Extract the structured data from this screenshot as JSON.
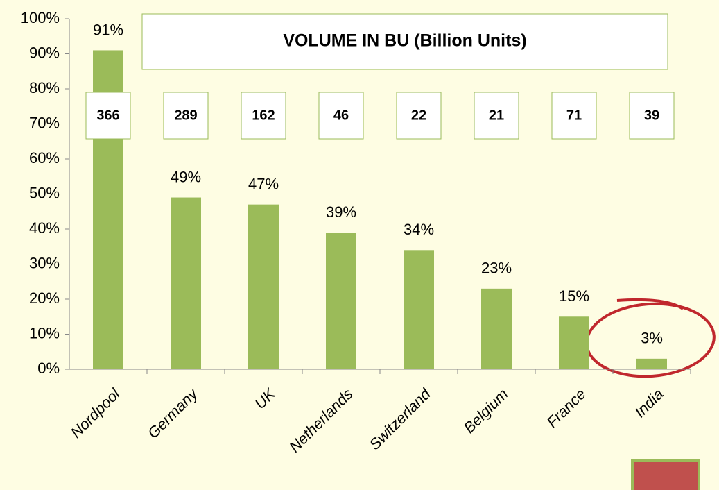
{
  "chart_data": {
    "type": "bar",
    "title": "VOLUME IN BU (Billion Units)",
    "categories": [
      "Nordpool",
      "Germany",
      "UK",
      "Netherlands",
      "Switzerland",
      "Belgium",
      "France",
      "India"
    ],
    "values": [
      91,
      49,
      47,
      39,
      34,
      23,
      15,
      3
    ],
    "value_labels": [
      "91%",
      "49%",
      "47%",
      "39%",
      "34%",
      "23%",
      "15%",
      "3%"
    ],
    "volumes": [
      366,
      289,
      162,
      46,
      22,
      21,
      71,
      39
    ],
    "color": "#9bbb59",
    "ylim": [
      0,
      100
    ],
    "yticks": [
      {
        "value": 0,
        "label": "0%"
      },
      {
        "value": 10,
        "label": "10%"
      },
      {
        "value": 20,
        "label": "20%"
      },
      {
        "value": 30,
        "label": "30%"
      },
      {
        "value": 40,
        "label": "40%"
      },
      {
        "value": 50,
        "label": "50%"
      },
      {
        "value": 60,
        "label": "60%"
      },
      {
        "value": 70,
        "label": "70%"
      },
      {
        "value": 80,
        "label": "80%"
      },
      {
        "value": 90,
        "label": "90%"
      },
      {
        "value": 100,
        "label": "100%"
      }
    ],
    "grid": false
  }
}
